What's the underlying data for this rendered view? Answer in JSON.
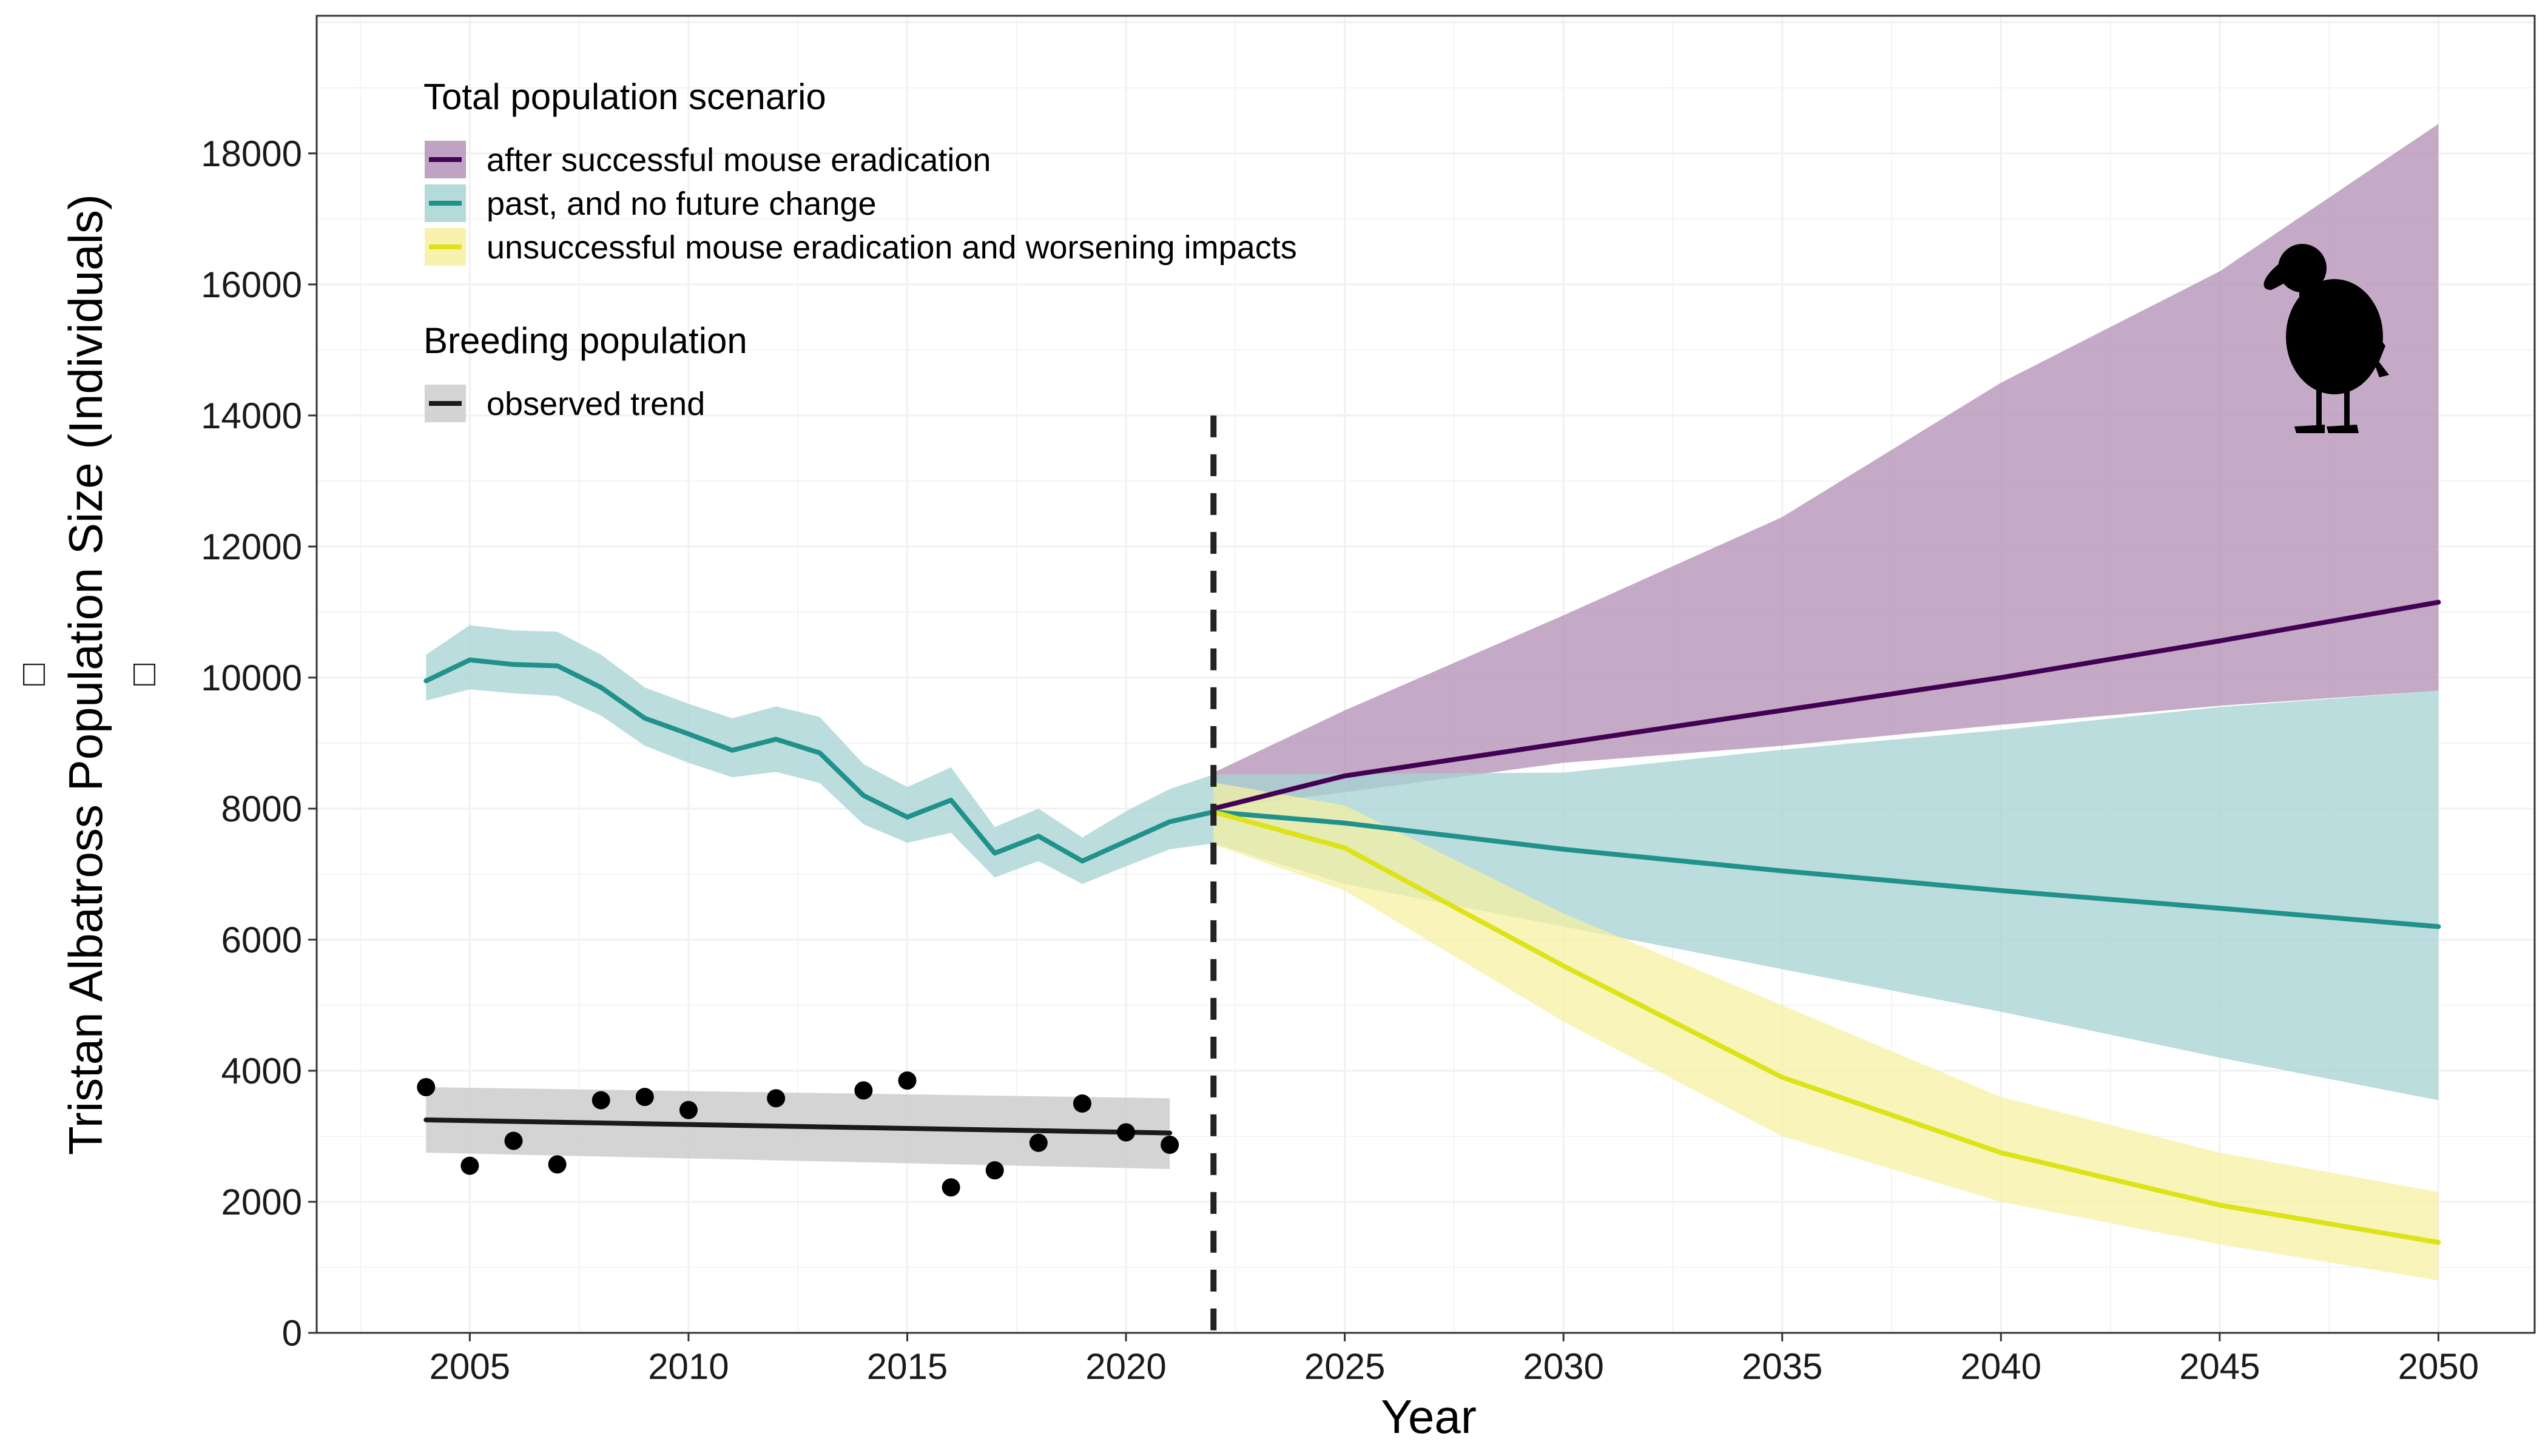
{
  "chart_data": {
    "type": "line",
    "title": "",
    "xlabel": "Year",
    "ylabel": "Tristan Albatross Population Size (Individuals)",
    "ylabel_glyph": "□",
    "xlim": [
      2001.5,
      2052.2
    ],
    "ylim": [
      0,
      20100
    ],
    "x_ticks": [
      2005,
      2010,
      2015,
      2020,
      2025,
      2030,
      2035,
      2040,
      2045,
      2050
    ],
    "y_ticks": [
      0,
      2000,
      4000,
      6000,
      8000,
      10000,
      12000,
      14000,
      16000,
      18000
    ],
    "grid": true,
    "divider_x": 2022,
    "divider_top": 14000,
    "legend": {
      "placement": "top-left",
      "total_title": "Total population scenario",
      "breeding_title": "Breeding population"
    },
    "series": [
      {
        "name": "after successful mouse eradication",
        "color": "#440154",
        "band_color": "#B592B7",
        "x": [
          2022,
          2025,
          2030,
          2035,
          2040,
          2045,
          2050
        ],
        "values": [
          8000,
          8500,
          9000,
          9500,
          10000,
          10560,
          11150
        ],
        "lower": [
          8000,
          8250,
          8700,
          8960,
          9280,
          9570,
          9800
        ],
        "upper": [
          8550,
          9500,
          10950,
          12450,
          14500,
          16200,
          18450
        ]
      },
      {
        "name": "past, and no future change",
        "color": "#21918C",
        "band_color": "#A8D4D3",
        "x": [
          2004,
          2005,
          2006,
          2007,
          2008,
          2009,
          2010,
          2011,
          2012,
          2013,
          2014,
          2015,
          2016,
          2017,
          2018,
          2019,
          2020,
          2021,
          2022,
          2025,
          2030,
          2035,
          2040,
          2045,
          2050
        ],
        "values": [
          9950,
          10270,
          10200,
          10180,
          9850,
          9380,
          9140,
          8890,
          9060,
          8850,
          8200,
          7870,
          8130,
          7320,
          7580,
          7200,
          7500,
          7800,
          7950,
          7780,
          7380,
          7050,
          6750,
          6480,
          6200
        ],
        "lower": [
          9650,
          9820,
          9760,
          9720,
          9420,
          8960,
          8700,
          8480,
          8560,
          8390,
          7760,
          7480,
          7630,
          6950,
          7200,
          6850,
          7120,
          7380,
          7470,
          6850,
          6200,
          5550,
          4900,
          4200,
          3550
        ],
        "upper": [
          10350,
          10800,
          10720,
          10700,
          10350,
          9850,
          9600,
          9380,
          9560,
          9400,
          8680,
          8330,
          8630,
          7720,
          8000,
          7560,
          7960,
          8300,
          8520,
          8530,
          8550,
          8900,
          9200,
          9550,
          9800
        ]
      },
      {
        "name": "unsuccessful mouse eradication and worsening impacts",
        "color": "#DDE318",
        "band_color": "#F7F0A0",
        "x": [
          2022,
          2025,
          2030,
          2035,
          2040,
          2045,
          2050
        ],
        "values": [
          7950,
          7400,
          5600,
          3900,
          2750,
          1950,
          1380
        ],
        "lower": [
          7450,
          6750,
          4750,
          3000,
          2000,
          1350,
          800
        ],
        "upper": [
          8400,
          8050,
          6400,
          5000,
          3600,
          2750,
          2150
        ]
      },
      {
        "name": "observed trend",
        "color": "#1a1a1a",
        "band_color": "#CCCCCC",
        "x": [
          2004,
          2021
        ],
        "values": [
          3250,
          3050
        ],
        "lower": [
          2750,
          2500
        ],
        "upper": [
          3750,
          3580
        ],
        "points_x": [
          2004,
          2005,
          2006,
          2007,
          2008,
          2009,
          2010,
          2012,
          2014,
          2015,
          2016,
          2017,
          2018,
          2019,
          2020,
          2021
        ],
        "points_y": [
          3750,
          2550,
          2930,
          2570,
          3550,
          3600,
          3400,
          3580,
          3700,
          3850,
          2220,
          2480,
          2900,
          3500,
          3060,
          2870
        ]
      }
    ]
  }
}
